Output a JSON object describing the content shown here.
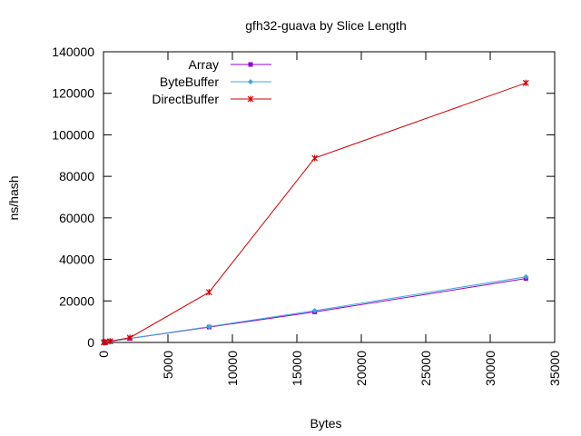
{
  "chart_data": {
    "type": "line",
    "title": "gfh32-guava by Slice Length",
    "xlabel": "Bytes",
    "ylabel": "ns/hash",
    "xlim": [
      0,
      35000
    ],
    "ylim": [
      0,
      140000
    ],
    "xticks": [
      0,
      5000,
      10000,
      15000,
      20000,
      25000,
      30000,
      35000
    ],
    "yticks": [
      0,
      20000,
      40000,
      60000,
      80000,
      100000,
      120000,
      140000
    ],
    "xtick_labels": [
      "0",
      "5000",
      "10000",
      "15000",
      "20000",
      "25000",
      "30000",
      "35000"
    ],
    "ytick_labels": [
      "0",
      "20000",
      "40000",
      "60000",
      "80000",
      "100000",
      "120000",
      "140000"
    ],
    "legend_position": "top-left",
    "grid": false,
    "series": [
      {
        "name": "Array",
        "color": "#9400d3",
        "marker": "square",
        "x": [
          32,
          128,
          512,
          2048,
          8192,
          16384,
          32768
        ],
        "y": [
          30,
          130,
          480,
          1900,
          7400,
          14700,
          30800
        ]
      },
      {
        "name": "ByteBuffer",
        "color": "#3fa9d6",
        "marker": "diamond",
        "x": [
          32,
          128,
          512,
          2048,
          8192,
          16384,
          32768
        ],
        "y": [
          32,
          135,
          500,
          1950,
          7600,
          15300,
          31600
        ]
      },
      {
        "name": "DirectBuffer",
        "color": "#d00000",
        "marker": "star",
        "x": [
          32,
          128,
          512,
          2048,
          8192,
          16384,
          32768
        ],
        "y": [
          40,
          170,
          600,
          2300,
          24200,
          88800,
          125000
        ]
      }
    ]
  }
}
